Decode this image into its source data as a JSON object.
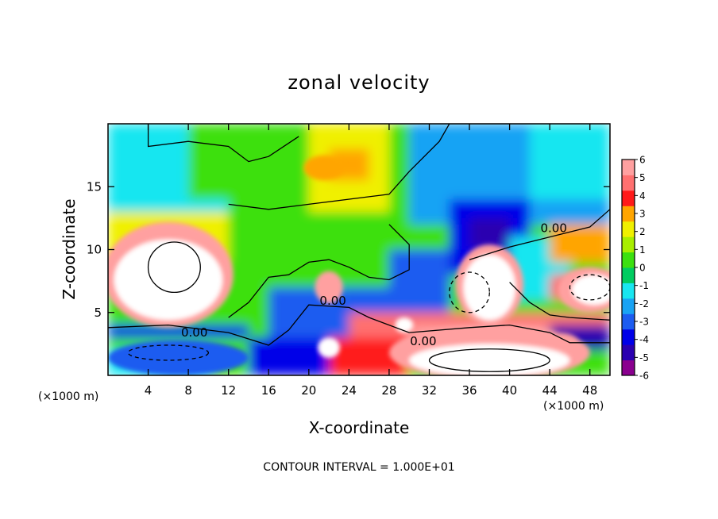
{
  "chart_data": {
    "type": "heatmap",
    "title": "zonal velocity",
    "xlabel": "X-coordinate",
    "ylabel": "Z-coordinate",
    "x_units": "(×1000 m)",
    "z_units": "(×1000 m)",
    "xlim": [
      0,
      50
    ],
    "ylim": [
      0,
      20
    ],
    "x_ticks": [
      4,
      8,
      12,
      16,
      20,
      24,
      28,
      32,
      36,
      40,
      44,
      48
    ],
    "y_ticks": [
      5,
      10,
      15
    ],
    "colorbar": {
      "min": -6,
      "max": 6,
      "ticks": [
        6,
        5,
        4,
        3,
        2,
        1,
        0,
        -1,
        -2,
        -3,
        -4,
        -5,
        -6
      ],
      "colors": [
        "#8a008f",
        "#2a00b0",
        "#0000e8",
        "#1c5cf0",
        "#19a3f4",
        "#19e6f0",
        "#00cc60",
        "#3ce010",
        "#a8ee00",
        "#f0f000",
        "#ffa500",
        "#ff1a1a",
        "#ff7070",
        "#ffa0a0"
      ]
    },
    "contour_labels": [
      "0.00",
      "0.00",
      "0.00",
      "0.00"
    ],
    "footer": "CONTOUR INTERVAL = 1.000E+01"
  }
}
